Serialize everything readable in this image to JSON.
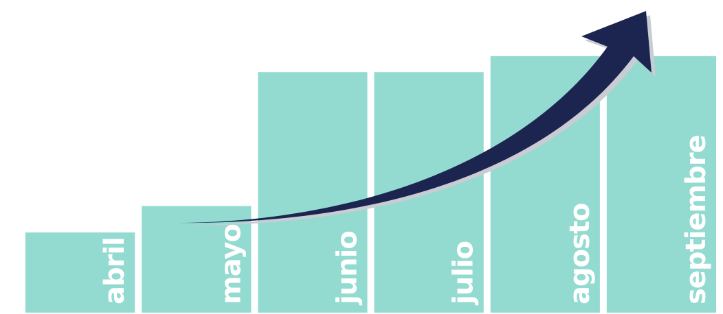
{
  "chart_data": {
    "type": "bar",
    "categories": [
      "abril",
      "mayo",
      "junio",
      "julio",
      "agosto",
      "septiembre"
    ],
    "values": [
      1.0,
      1.33,
      3.0,
      3.0,
      3.2,
      3.2
    ],
    "ylim": [
      0,
      3.9
    ],
    "grid": false,
    "legend": "none",
    "trend_arrow": true
  },
  "colors": {
    "bar": "#93dbd1",
    "label": "#ffffff",
    "arrow": "#1b2550",
    "arrow_shadow": "#c9ccd3",
    "background": "#ffffff"
  }
}
